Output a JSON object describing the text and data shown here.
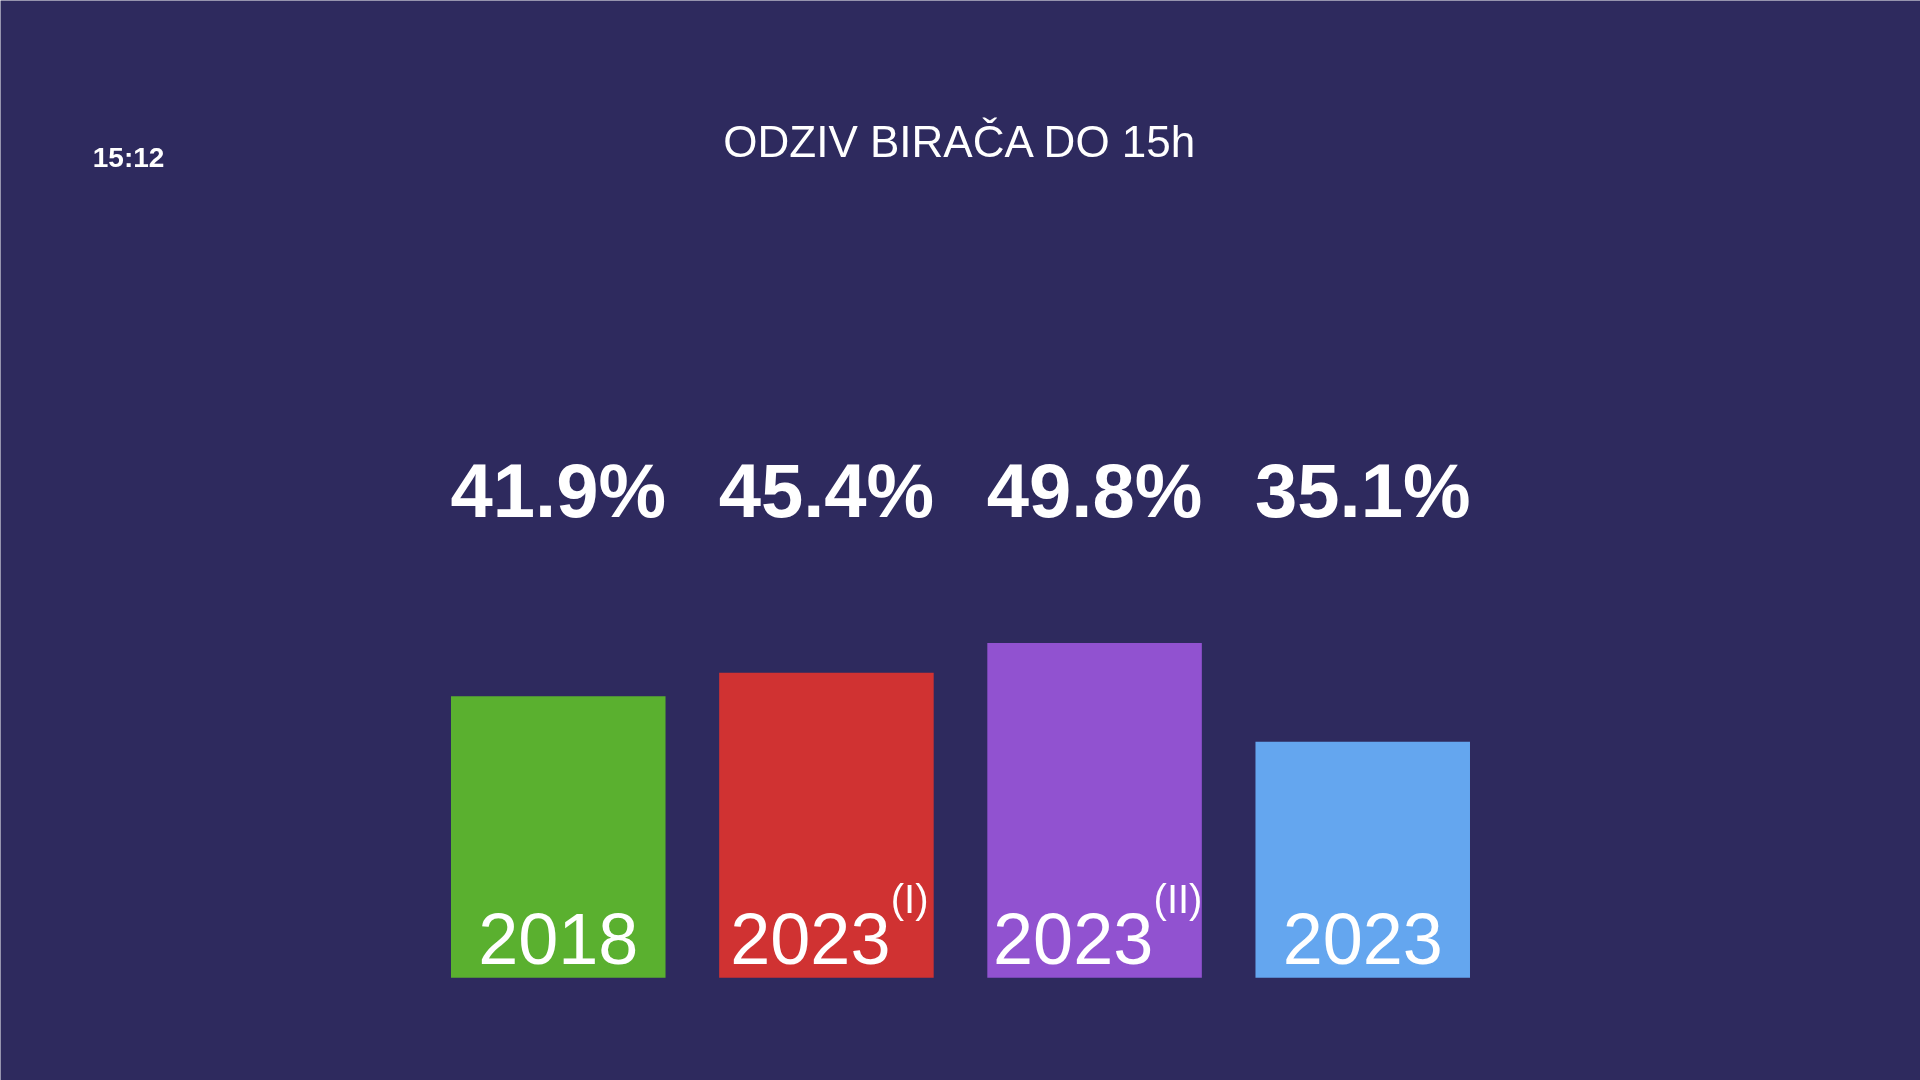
{
  "chart_data": {
    "type": "bar",
    "title": "ODZIV BIRAČA DO 15h",
    "categories": [
      "2018",
      "2023$^{(I)}$",
      "2023$^{(II)}$",
      "2023"
    ],
    "values": [
      41.9,
      45.4,
      49.8,
      35.1
    ],
    "colors": [
      "#5ab02f",
      "#d03232",
      "#9152d0",
      "#64a6ef"
    ],
    "value_labels": [
      "41.9%",
      "45.4%",
      "49.8%",
      "35.1%"
    ],
    "annotations": [
      "15:12"
    ],
    "grid": false
  }
}
